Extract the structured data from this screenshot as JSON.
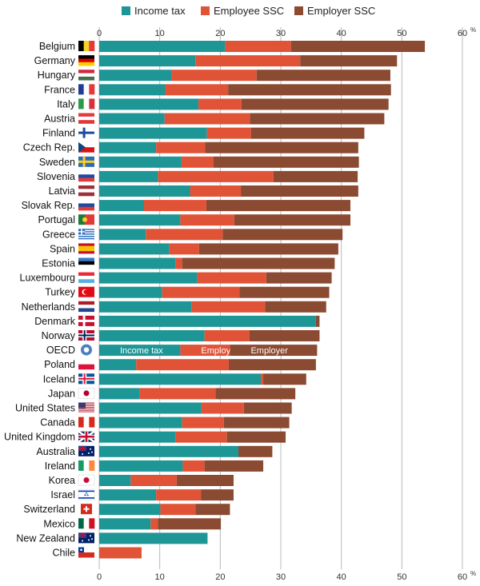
{
  "chart_data": {
    "type": "bar",
    "orientation": "horizontal",
    "stacked": true,
    "title": "",
    "xlabel": "",
    "ylabel": "",
    "unit": "%",
    "xlim": [
      0,
      60
    ],
    "xticks": [
      "0",
      "10",
      "20",
      "30",
      "40",
      "50",
      "60"
    ],
    "grid": true,
    "legend_position": "top",
    "categories": [
      "Belgium",
      "Germany",
      "Hungary",
      "France",
      "Italy",
      "Austria",
      "Finland",
      "Czech Rep.",
      "Sweden",
      "Slovenia",
      "Latvia",
      "Slovak Rep.",
      "Portugal",
      "Greece",
      "Spain",
      "Estonia",
      "Luxembourg",
      "Turkey",
      "Netherlands",
      "Denmark",
      "Norway",
      "OECD",
      "Poland",
      "Iceland",
      "Japan",
      "United States",
      "Canada",
      "United Kingdom",
      "Australia",
      "Ireland",
      "Korea",
      "Israel",
      "Switzerland",
      "Mexico",
      "New Zealand",
      "Chile"
    ],
    "series": [
      {
        "name": "Income tax",
        "color": "#1f9696",
        "values": [
          20.8,
          15.9,
          11.9,
          10.9,
          16.4,
          10.8,
          17.8,
          9.4,
          13.6,
          9.7,
          15,
          7.4,
          13.4,
          7.7,
          11.6,
          12.6,
          16.2,
          10.4,
          15.3,
          35.8,
          17.4,
          13.4,
          6.1,
          26.7,
          6.7,
          16.9,
          13.7,
          12.6,
          23,
          13.8,
          5.2,
          9.4,
          10.1,
          8.5,
          17.9,
          0
        ],
        "labels": {
          "OECD": "Income tax"
        }
      },
      {
        "name": "Employee SSC",
        "color": "#e15337",
        "values": [
          10.9,
          17.3,
          14.1,
          10.4,
          7.1,
          14.1,
          7.3,
          8.1,
          5.3,
          19.1,
          8.4,
          10.3,
          8.9,
          12.7,
          4.9,
          1.1,
          11.4,
          12.8,
          12.1,
          0,
          7.4,
          8.2,
          15.3,
          0.4,
          12.5,
          7,
          6.9,
          8.5,
          0,
          3.6,
          7.6,
          7.4,
          5.8,
          1.2,
          0,
          7
        ],
        "labels": {
          "OECD": "Employee"
        }
      },
      {
        "name": "Employer SSC",
        "color": "#8b4a32",
        "values": [
          22.1,
          16,
          22.1,
          26.9,
          24.3,
          22.2,
          18.7,
          25.3,
          24,
          13.9,
          19.4,
          23.8,
          19.2,
          19.8,
          23,
          25.2,
          10.8,
          14.8,
          10.1,
          0.6,
          11.6,
          14.4,
          14.4,
          7.1,
          13.2,
          7.9,
          10.8,
          9.7,
          5.6,
          9.7,
          9.4,
          5.4,
          5.7,
          10.4,
          0,
          0
        ],
        "labels": {
          "OECD": "Employer"
        }
      }
    ],
    "flags": {
      "Belgium": {
        "type": "v",
        "colors": [
          "#000000",
          "#f4d22a",
          "#e23a3a"
        ]
      },
      "Germany": {
        "type": "h",
        "colors": [
          "#000000",
          "#dd0000",
          "#ffce00"
        ]
      },
      "Hungary": {
        "type": "h",
        "colors": [
          "#cd2a3e",
          "#ffffff",
          "#436f4d"
        ]
      },
      "France": {
        "type": "v",
        "colors": [
          "#1e3c96",
          "#ffffff",
          "#e23a3a"
        ]
      },
      "Italy": {
        "type": "v",
        "colors": [
          "#2d9a4a",
          "#ffffff",
          "#d8313c"
        ]
      },
      "Austria": {
        "type": "h",
        "colors": [
          "#e23a3a",
          "#ffffff",
          "#e23a3a"
        ]
      },
      "Finland": {
        "type": "cross",
        "colors": [
          "#ffffff",
          "#1f4aa0"
        ]
      },
      "Czech Rep.": {
        "type": "czech",
        "colors": [
          "#ffffff",
          "#d7141a",
          "#11457e"
        ]
      },
      "Sweden": {
        "type": "cross",
        "colors": [
          "#2e6bb4",
          "#f5cc2a"
        ]
      },
      "Slovenia": {
        "type": "h",
        "colors": [
          "#ffffff",
          "#1f4aa0",
          "#e23a3a"
        ]
      },
      "Latvia": {
        "type": "h",
        "colors": [
          "#9e3039",
          "#ffffff",
          "#9e3039"
        ]
      },
      "Slovak Rep.": {
        "type": "h",
        "colors": [
          "#ffffff",
          "#1f4aa0",
          "#e23a3a"
        ]
      },
      "Portugal": {
        "type": "v2",
        "colors": [
          "#1f7a3a",
          "#e23a3a"
        ]
      },
      "Greece": {
        "type": "stripes",
        "colors": [
          "#2f6cc0",
          "#ffffff"
        ]
      },
      "Spain": {
        "type": "h3",
        "colors": [
          "#c8102e",
          "#f4c400",
          "#c8102e"
        ]
      },
      "Estonia": {
        "type": "h",
        "colors": [
          "#3a75c4",
          "#000000",
          "#ffffff"
        ]
      },
      "Luxembourg": {
        "type": "h",
        "colors": [
          "#ed2939",
          "#ffffff",
          "#5aaee0"
        ]
      },
      "Turkey": {
        "type": "solid",
        "colors": [
          "#e30a17"
        ]
      },
      "Netherlands": {
        "type": "h",
        "colors": [
          "#ae1c28",
          "#ffffff",
          "#21468b"
        ]
      },
      "Denmark": {
        "type": "cross",
        "colors": [
          "#c8102e",
          "#ffffff"
        ]
      },
      "Norway": {
        "type": "cross2",
        "colors": [
          "#ba0c2f",
          "#ffffff",
          "#00205b"
        ]
      },
      "OECD": {
        "type": "circle",
        "colors": [
          "#4a7fc0"
        ]
      },
      "Poland": {
        "type": "h2",
        "colors": [
          "#ffffff",
          "#dc143c"
        ]
      },
      "Iceland": {
        "type": "cross2",
        "colors": [
          "#02529c",
          "#ffffff",
          "#dc1e35"
        ]
      },
      "Japan": {
        "type": "dot",
        "colors": [
          "#ffffff",
          "#bc002d"
        ]
      },
      "United States": {
        "type": "us",
        "colors": [
          "#b22234",
          "#ffffff",
          "#3c3b6e"
        ]
      },
      "Canada": {
        "type": "v",
        "colors": [
          "#d52b1e",
          "#ffffff",
          "#d52b1e"
        ]
      },
      "United Kingdom": {
        "type": "uk",
        "colors": [
          "#012169",
          "#ffffff",
          "#c8102e"
        ]
      },
      "Australia": {
        "type": "au",
        "colors": [
          "#012169",
          "#ffffff"
        ]
      },
      "Ireland": {
        "type": "v",
        "colors": [
          "#169b62",
          "#ffffff",
          "#ff883e"
        ]
      },
      "Korea": {
        "type": "dot",
        "colors": [
          "#ffffff",
          "#c60c30"
        ]
      },
      "Israel": {
        "type": "israel",
        "colors": [
          "#ffffff",
          "#0038b8"
        ]
      },
      "Switzerland": {
        "type": "swiss",
        "colors": [
          "#d52b1e",
          "#ffffff"
        ]
      },
      "Mexico": {
        "type": "v",
        "colors": [
          "#006847",
          "#ffffff",
          "#ce1126"
        ]
      },
      "New Zealand": {
        "type": "au",
        "colors": [
          "#012169",
          "#ffffff"
        ]
      },
      "Chile": {
        "type": "chile",
        "colors": [
          "#ffffff",
          "#d52b1e",
          "#0039a6"
        ]
      }
    }
  }
}
